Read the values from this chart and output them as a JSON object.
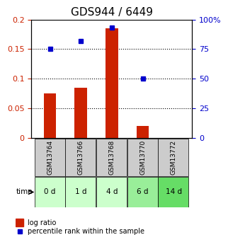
{
  "title": "GDS944 / 6449",
  "samples": [
    "GSM13764",
    "GSM13766",
    "GSM13768",
    "GSM13770",
    "GSM13772"
  ],
  "time_labels": [
    "0 d",
    "1 d",
    "4 d",
    "6 d",
    "14 d"
  ],
  "log_ratio": [
    0.075,
    0.085,
    0.185,
    0.02,
    0.0
  ],
  "percentile_rank": [
    75,
    82,
    93,
    50,
    null
  ],
  "left_ylim": [
    0,
    0.2
  ],
  "right_ylim": [
    0,
    100
  ],
  "left_yticks": [
    0,
    0.05,
    0.1,
    0.15,
    0.2
  ],
  "right_yticks": [
    0,
    25,
    50,
    75,
    100
  ],
  "left_ytick_labels": [
    "0",
    "0.05",
    "0.1",
    "0.15",
    "0.2"
  ],
  "right_ytick_labels": [
    "0",
    "25",
    "50",
    "75",
    "100%"
  ],
  "bar_color": "#cc2200",
  "dot_color": "#0000cc",
  "bar_width": 0.4,
  "grid_color": "#000000",
  "sample_bg_color": "#cccccc",
  "time_bg_colors": [
    "#ccffcc",
    "#ccffcc",
    "#ccffcc",
    "#99ee99",
    "#66dd66"
  ],
  "legend_bar_label": "log ratio",
  "legend_dot_label": "percentile rank within the sample",
  "title_fontsize": 11,
  "tick_fontsize": 8,
  "label_fontsize": 8
}
